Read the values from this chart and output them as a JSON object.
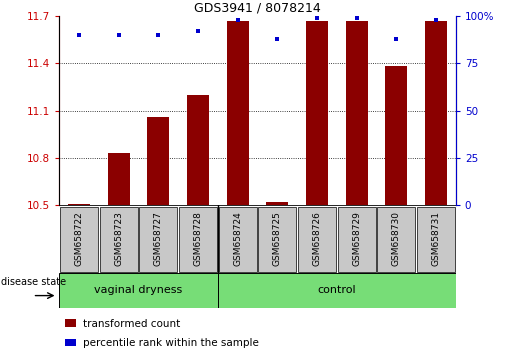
{
  "title": "GDS3941 / 8078214",
  "samples": [
    "GSM658722",
    "GSM658723",
    "GSM658727",
    "GSM658728",
    "GSM658724",
    "GSM658725",
    "GSM658726",
    "GSM658729",
    "GSM658730",
    "GSM658731"
  ],
  "transformed_count": [
    10.51,
    10.83,
    11.06,
    11.2,
    11.67,
    10.52,
    11.67,
    11.67,
    11.38,
    11.67
  ],
  "percentile_rank": [
    90,
    90,
    90,
    92,
    98,
    88,
    99,
    99,
    88,
    98
  ],
  "ylim_left": [
    10.5,
    11.7
  ],
  "ylim_right": [
    0,
    100
  ],
  "yticks_left": [
    10.5,
    10.8,
    11.1,
    11.4,
    11.7
  ],
  "yticks_right": [
    0,
    25,
    50,
    75,
    100
  ],
  "groups": [
    {
      "label": "vaginal dryness",
      "n_samples": 4
    },
    {
      "label": "control",
      "n_samples": 6
    }
  ],
  "group_label": "disease state",
  "bar_color": "#8B0000",
  "dot_color": "#0000CD",
  "green_color": "#77DD77",
  "gray_color": "#C8C8C8",
  "axis_left_color": "#CC0000",
  "axis_right_color": "#0000CD",
  "legend_bar_label": "transformed count",
  "legend_dot_label": "percentile rank within the sample",
  "title_fontsize": 9,
  "tick_fontsize": 7.5,
  "sample_fontsize": 6.5,
  "legend_fontsize": 7.5,
  "group_fontsize": 8
}
